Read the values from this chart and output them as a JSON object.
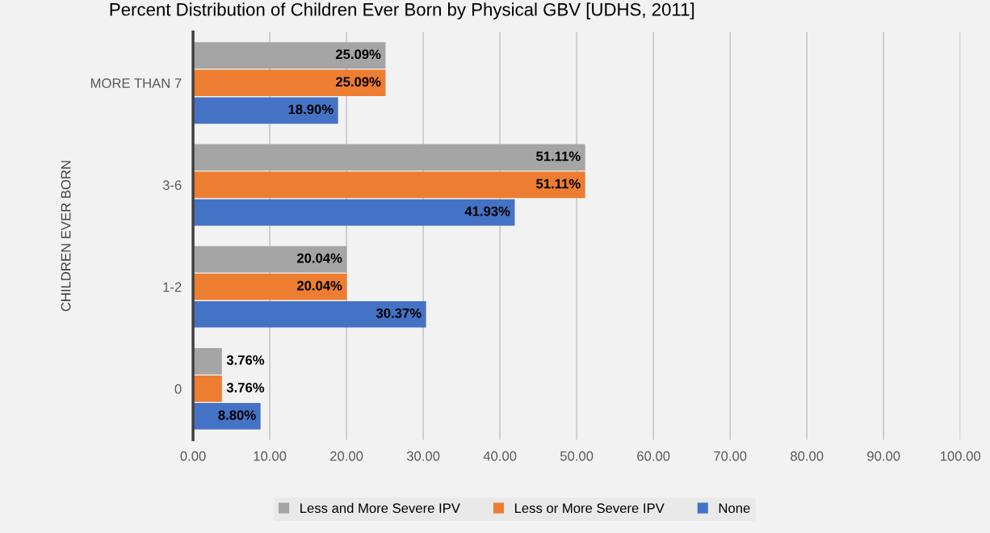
{
  "chart_data": {
    "type": "bar",
    "orientation": "horizontal",
    "title": "Percent Distribution of Children Ever Born by Physical GBV [UDHS, 2011]",
    "ylabel": "CHILDREN EVER BORN",
    "categories": [
      "MORE THAN 7",
      "3-6",
      "1-2",
      "0"
    ],
    "series": [
      {
        "name": "Less and More Severe IPV",
        "color": "#a5a5a5",
        "values": [
          25.09,
          51.11,
          20.04,
          3.76
        ],
        "value_labels": [
          "25.09%",
          "51.11%",
          "20.04%",
          "3.76%"
        ]
      },
      {
        "name": "Less or More Severe IPV",
        "color": "#ed7d31",
        "values": [
          25.09,
          51.11,
          20.04,
          3.76
        ],
        "value_labels": [
          "25.09%",
          "51.11%",
          "20.04%",
          "3.76%"
        ]
      },
      {
        "name": "None",
        "color": "#4472c4",
        "values": [
          18.9,
          41.93,
          30.37,
          8.8
        ],
        "value_labels": [
          "18.90%",
          "41.93%",
          "30.37%",
          "8.80%"
        ]
      }
    ],
    "xlim": [
      0,
      100
    ],
    "xticks": [
      {
        "value": 0,
        "label": "0.00"
      },
      {
        "value": 10,
        "label": "10.00"
      },
      {
        "value": 20,
        "label": "20.00"
      },
      {
        "value": 30,
        "label": "30.00"
      },
      {
        "value": 40,
        "label": "40.00"
      },
      {
        "value": 50,
        "label": "50.00"
      },
      {
        "value": 60,
        "label": "60.00"
      },
      {
        "value": 70,
        "label": "70.00"
      },
      {
        "value": 80,
        "label": "80.00"
      },
      {
        "value": 90,
        "label": "90.00"
      },
      {
        "value": 100,
        "label": "100.00"
      }
    ],
    "grid": "x",
    "legend": "bottom"
  }
}
